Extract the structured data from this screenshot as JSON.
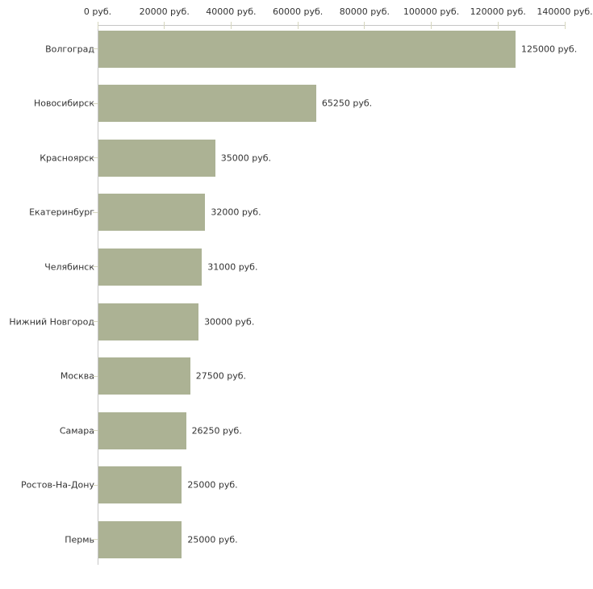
{
  "chart_data": {
    "type": "bar",
    "orientation": "horizontal",
    "title": "",
    "xlabel": "",
    "ylabel": "",
    "grid": false,
    "legend": "none",
    "categories": [
      "Волгоград",
      "Новосибирск",
      "Красноярск",
      "Екатеринбург",
      "Челябинск",
      "Нижний Новгород",
      "Москва",
      "Самара",
      "Ростов-На-Дону",
      "Пермь"
    ],
    "values": [
      125000,
      65250,
      35000,
      32000,
      31000,
      30000,
      27500,
      26250,
      25000,
      25000
    ],
    "value_labels": [
      "125000 руб.",
      "65250 руб.",
      "35000 руб.",
      "32000 руб.",
      "31000 руб.",
      "30000 руб.",
      "27500 руб.",
      "26250 руб.",
      "25000 руб.",
      "25000 руб."
    ],
    "x_ticks": [
      0,
      20000,
      40000,
      60000,
      80000,
      100000,
      120000,
      140000
    ],
    "x_tick_labels": [
      "0 руб.",
      "20000 руб.",
      "40000 руб.",
      "60000 руб.",
      "80000 руб.",
      "100000 руб.",
      "120000 руб.",
      "140000 руб."
    ],
    "xlim": [
      0,
      140000
    ],
    "colors": {
      "bar": "#acb294",
      "axis_line": "#c6c6c6",
      "tick_mark": "#d6d6be",
      "text": "#333333",
      "background": "#ffffff"
    }
  }
}
